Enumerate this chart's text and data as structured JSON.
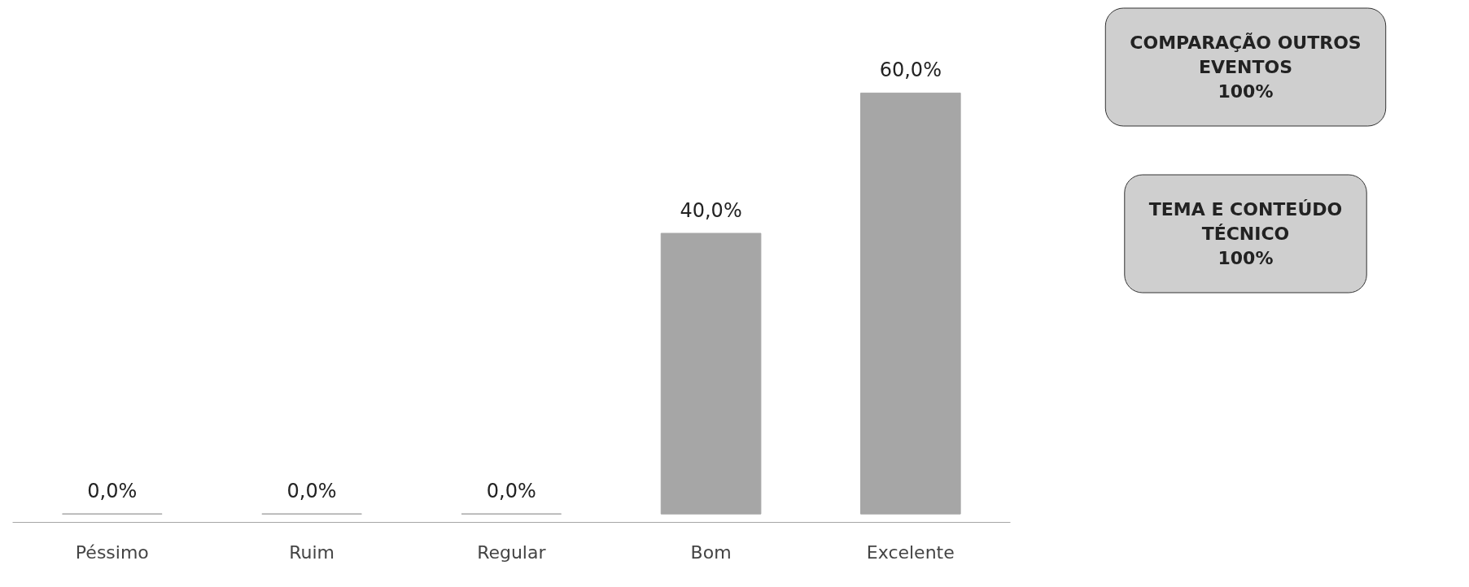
{
  "chart_data": {
    "type": "bar",
    "categories": [
      "Péssimo",
      "Ruim",
      "Regular",
      "Bom",
      "Excelente"
    ],
    "values": [
      0,
      0,
      0,
      40,
      60
    ],
    "value_labels": [
      "0,0%",
      "0,0%",
      "0,0%",
      "40,0%",
      "60,0%"
    ],
    "color": "#a6a6a6",
    "grid": false,
    "tick_labels": "x",
    "annotations": [
      "COMPARAÇÃO OUTROS\nEVENTOS\n100%",
      "TEMA E CONTEÚDO\nTÉCNICO\n100%"
    ]
  }
}
